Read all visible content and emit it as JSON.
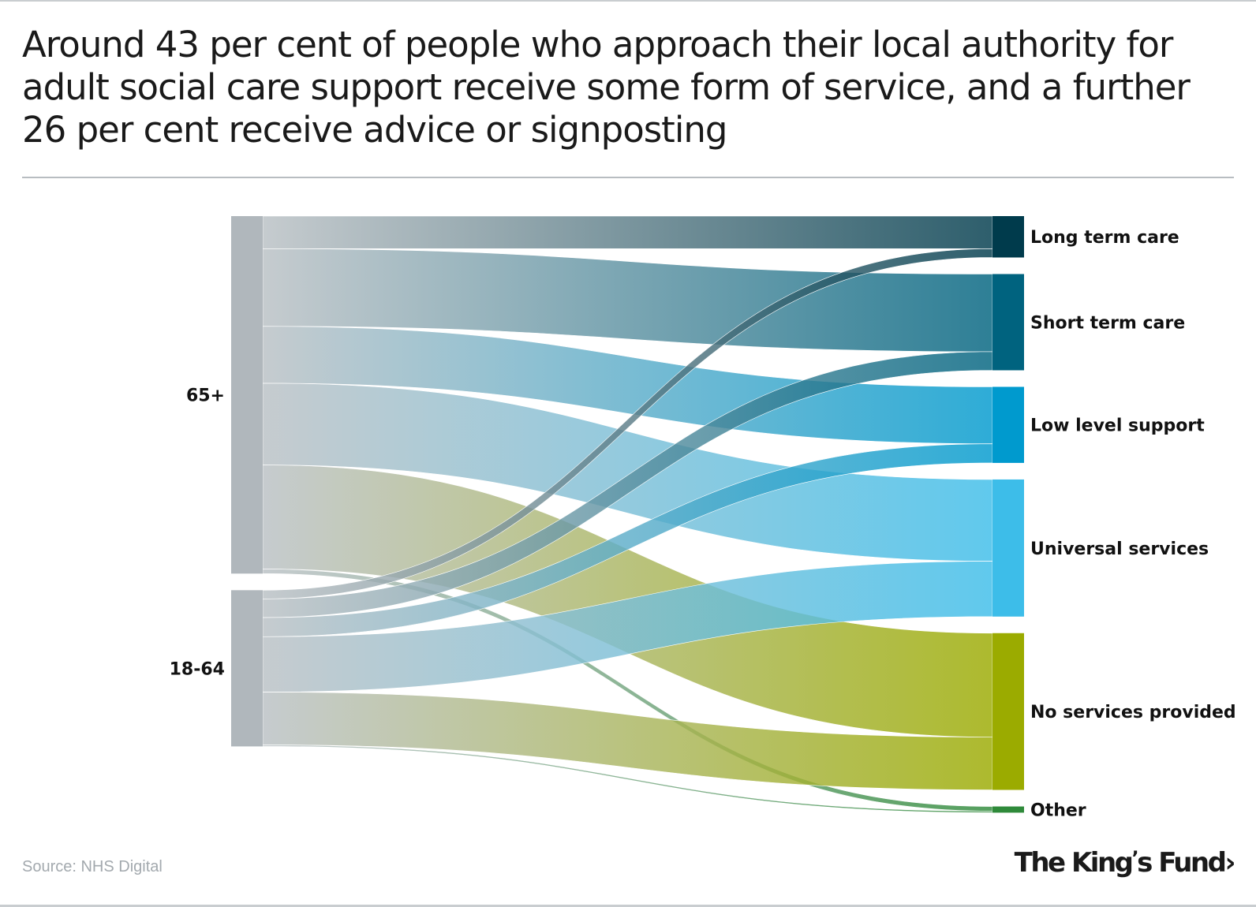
{
  "title": "Around 43 per cent of people who approach their local authority for adult social care support receive some form of service, and a further 26 per cent receive advice or signposting",
  "source": "Source: NHS Digital",
  "logo": "The King's Fund",
  "chart_data": {
    "type": "sankey",
    "units": "approximate share of all people approaching local authority (%)",
    "sources": [
      {
        "name": "65+",
        "color": "#b0b7bc"
      },
      {
        "name": "18-64",
        "color": "#b0b7bc"
      }
    ],
    "targets": [
      {
        "name": "Long term care",
        "color": "#003b4c"
      },
      {
        "name": "Short term care",
        "color": "#00637f"
      },
      {
        "name": "Low level support",
        "color": "#009ace"
      },
      {
        "name": "Universal services",
        "color": "#3dbde9"
      },
      {
        "name": "No services provided",
        "color": "#9bab00"
      },
      {
        "name": "Other",
        "color": "#2f8a3a"
      }
    ],
    "flows": [
      {
        "from": "65+",
        "to": "Long term care",
        "value": 6.3
      },
      {
        "from": "65+",
        "to": "Short term care",
        "value": 15.0
      },
      {
        "from": "65+",
        "to": "Low level support",
        "value": 11.0
      },
      {
        "from": "65+",
        "to": "Universal services",
        "value": 15.8
      },
      {
        "from": "65+",
        "to": "No services provided",
        "value": 20.1
      },
      {
        "from": "65+",
        "to": "Other",
        "value": 0.9
      },
      {
        "from": "18-64",
        "to": "Long term care",
        "value": 1.7
      },
      {
        "from": "18-64",
        "to": "Short term care",
        "value": 3.6
      },
      {
        "from": "18-64",
        "to": "Low level support",
        "value": 3.7
      },
      {
        "from": "18-64",
        "to": "Universal services",
        "value": 10.7
      },
      {
        "from": "18-64",
        "to": "No services provided",
        "value": 10.2
      },
      {
        "from": "18-64",
        "to": "Other",
        "value": 0.3
      }
    ]
  }
}
